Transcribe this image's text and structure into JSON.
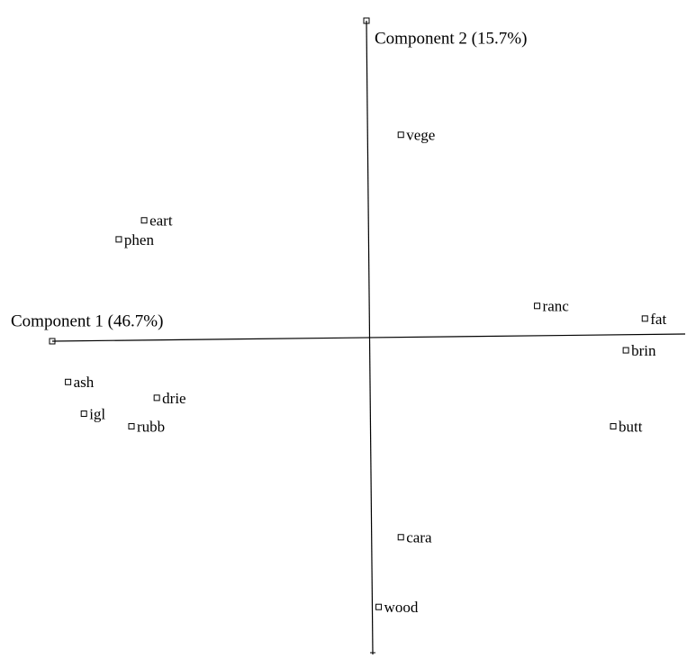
{
  "chart_data": {
    "type": "scatter",
    "xlabel": "Component 1 (46.7%)",
    "ylabel": "Component 2 (15.7%)",
    "labels": [
      "vege",
      "eart",
      "phen",
      "ranc",
      "fat",
      "brin",
      "ash",
      "drie",
      "igl",
      "rubb",
      "butt",
      "cara",
      "wood"
    ],
    "x": [
      0.1,
      -0.71,
      -0.79,
      0.53,
      0.87,
      0.81,
      -0.95,
      -0.67,
      -0.9,
      -0.75,
      0.77,
      0.1,
      0.03
    ],
    "y": [
      0.64,
      0.37,
      0.31,
      0.1,
      0.06,
      -0.04,
      -0.14,
      -0.19,
      -0.24,
      -0.28,
      -0.28,
      -0.63,
      -0.85
    ],
    "xlim": [
      -1,
      1
    ],
    "ylim": [
      -1,
      1
    ],
    "color": "#000000"
  }
}
